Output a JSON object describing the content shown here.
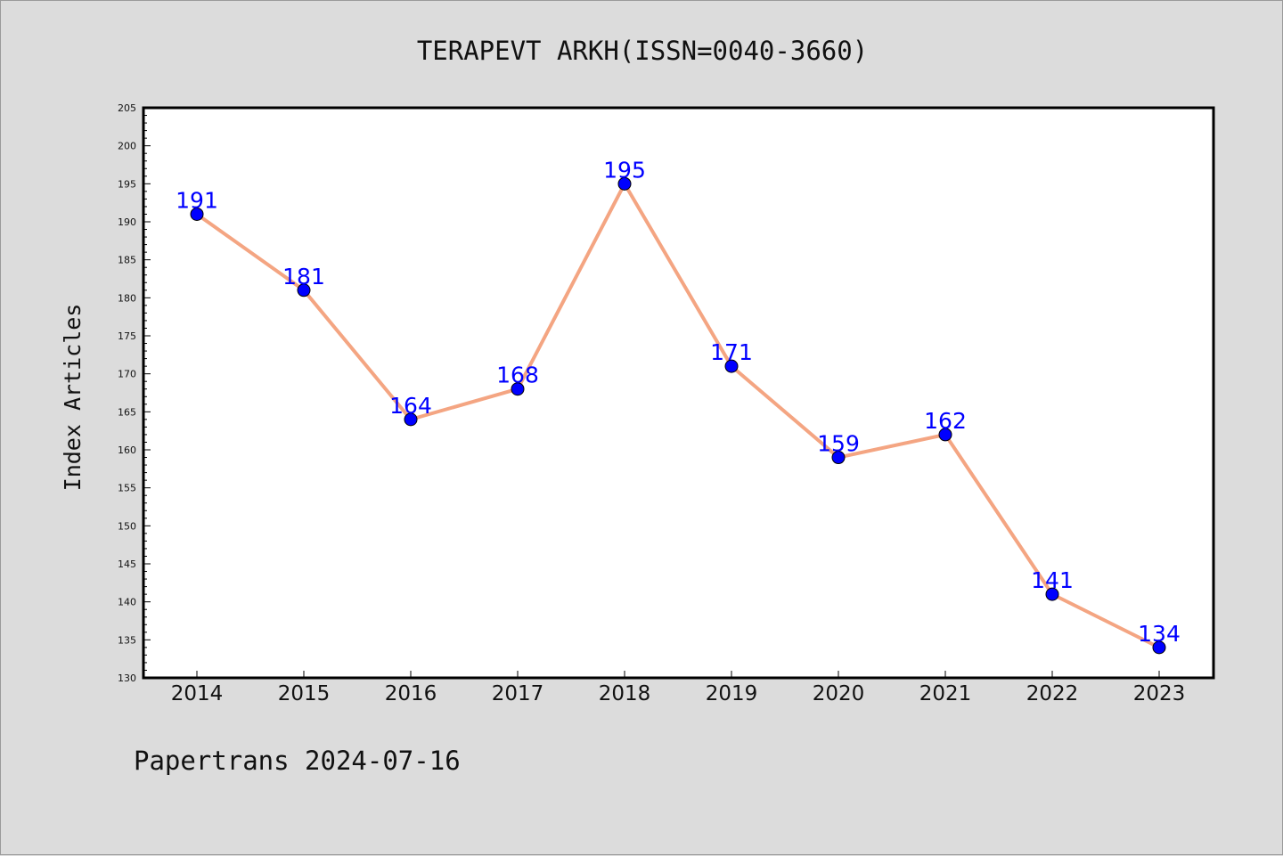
{
  "colors": {
    "background": "#dcdcdc",
    "plot_background": "#ffffff",
    "line": "#f4a582",
    "marker": "#0000ff",
    "data_label": "#0000ff",
    "axis": "#000000"
  },
  "footer": "Papertrans 2024-07-16",
  "chart_data": {
    "type": "line",
    "title": "TERAPEVT ARKH(ISSN=0040-3660)",
    "xlabel": "",
    "ylabel": "Index Articles",
    "categories": [
      "2014",
      "2015",
      "2016",
      "2017",
      "2018",
      "2019",
      "2020",
      "2021",
      "2022",
      "2023"
    ],
    "series": [
      {
        "values": [
          191,
          181,
          164,
          168,
          195,
          171,
          159,
          162,
          141,
          134
        ]
      }
    ],
    "ylim": [
      130,
      205
    ],
    "yticks": [
      130,
      135,
      140,
      145,
      150,
      155,
      160,
      165,
      170,
      175,
      180,
      185,
      190,
      195,
      200,
      205
    ],
    "grid": false,
    "legend": "none",
    "data_labels": true
  }
}
